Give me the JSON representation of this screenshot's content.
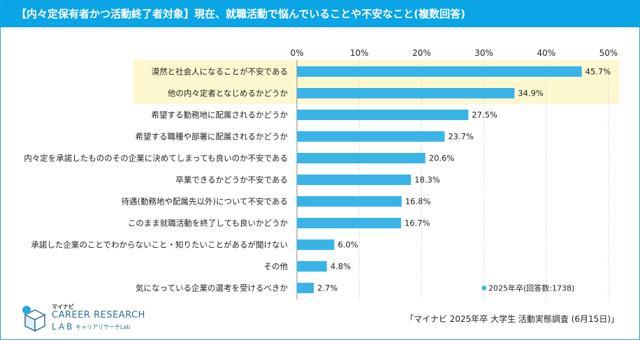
{
  "title": "【内々定保有者かつ活動終了者対象】現在、就職活動で悩んでいることや不安なこと(複数回答)",
  "colors": {
    "accent": "#0aa5e6",
    "bar": "#3ab4e6",
    "highlight": "#fdf8cf",
    "grid": "#d8d8d8"
  },
  "chart_data": {
    "type": "bar",
    "orientation": "horizontal",
    "title": "【内々定保有者かつ活動終了者対象】現在、就職活動で悩んでいることや不安なこと(複数回答)",
    "categories": [
      "漠然と社会人になることが不安である",
      "他の内々定者となじめるかどうか",
      "希望する勤務地に配属されるかどうか",
      "希望する職種や部署に配属されるかどうか",
      "内々定を承諾したもののその企業に決めてしまっても良いのか不安である",
      "卒業できるかどうか不安である",
      "待遇(勤務地や配属先以外)について不安である",
      "このまま就職活動を終了しても良いかどうか",
      "承諾した企業のことでわからないこと・知りたいことがあるが聞けない",
      "その他",
      "気になっている企業の選考を受けるべきか"
    ],
    "series": [
      {
        "name": "2025年卒(回答数:1738)",
        "values": [
          45.7,
          34.9,
          27.5,
          23.7,
          20.6,
          18.3,
          16.8,
          16.7,
          6.0,
          4.8,
          2.7
        ],
        "value_labels": [
          "45.7%",
          "34.9%",
          "27.5%",
          "23.7%",
          "20.6%",
          "18.3%",
          "16.8%",
          "16.7%",
          "6.0%",
          "4.8%",
          "2.7%"
        ]
      }
    ],
    "highlighted_categories": [
      0,
      1
    ],
    "xlim": [
      0,
      50
    ],
    "ticks": [
      0,
      10,
      20,
      30,
      40,
      50
    ],
    "tick_labels": [
      "0%",
      "10%",
      "20%",
      "30%",
      "40%",
      "50%"
    ],
    "legend": "2025年卒(回答数:1738)",
    "legend_position": "bottom-right",
    "grid": true
  },
  "logo": {
    "top": "マイナビ",
    "main": "CAREER RESEARCH",
    "lab": "LAB",
    "sub": "キャリアリサーチLab"
  },
  "source": "「マイナビ 2025年卒 大学生 活動実態調査 (6月15日)」"
}
